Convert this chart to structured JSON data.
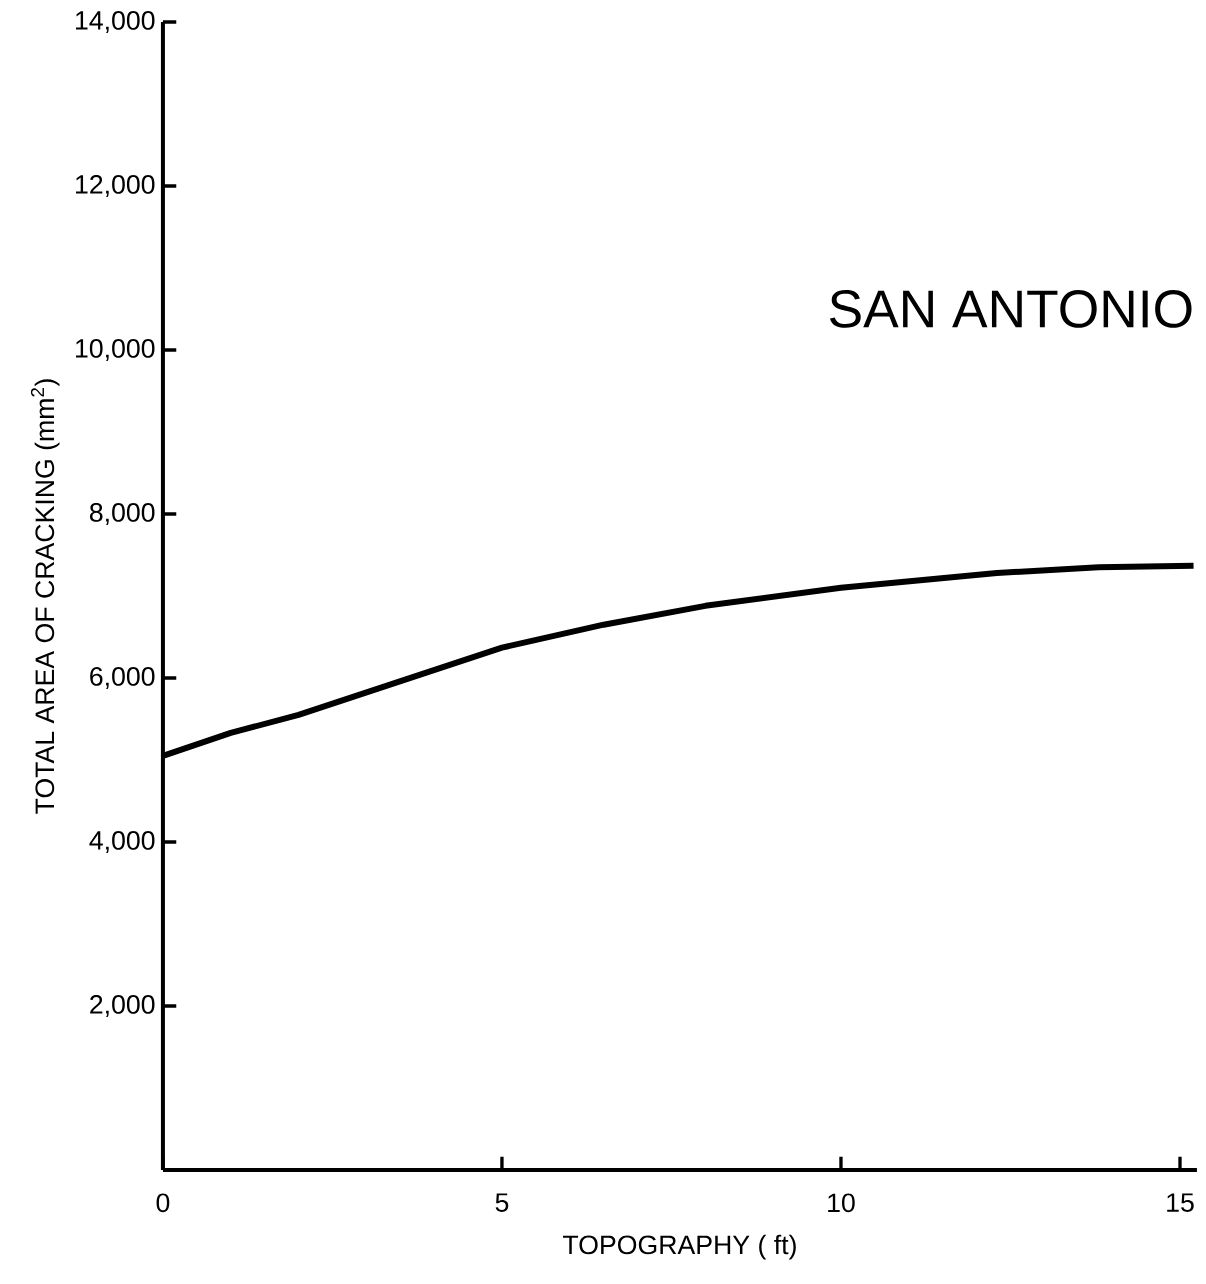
{
  "chart_data": {
    "type": "line",
    "xlabel": "TOPOGRAPHY ( ft)",
    "ylabel": "TOTAL AREA OF CRACKING (mm$^{2}$)",
    "annotations": [
      "SAN ANTONIO"
    ],
    "x": [
      0,
      1,
      2,
      3.5,
      5,
      6.5,
      8,
      10,
      12.3,
      13.8,
      15.2
    ],
    "values": [
      5050,
      5330,
      5550,
      5960,
      6370,
      6650,
      6880,
      7100,
      7280,
      7350,
      7370
    ],
    "color": "#000000",
    "line_style": "solid",
    "xlim": [
      0,
      15.25
    ],
    "ylim": [
      0,
      14000
    ],
    "xticks": [
      0,
      5,
      10,
      15
    ],
    "yticks": [
      {
        "value": 2000,
        "label": "2,000"
      },
      {
        "value": 4000,
        "label": "4,000"
      },
      {
        "value": 6000,
        "label": "6,000"
      },
      {
        "value": 8000,
        "label": "8,000"
      },
      {
        "value": 10000,
        "label": "10,000"
      },
      {
        "value": 12000,
        "label": "12,000"
      },
      {
        "value": 14000,
        "label": "14,000"
      }
    ]
  }
}
